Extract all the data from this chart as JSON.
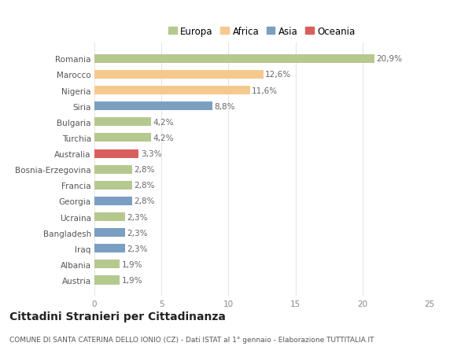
{
  "categories": [
    "Romania",
    "Marocco",
    "Nigeria",
    "Siria",
    "Bulgaria",
    "Turchia",
    "Australia",
    "Bosnia-Erzegovina",
    "Francia",
    "Georgia",
    "Ucraina",
    "Bangladesh",
    "Iraq",
    "Albania",
    "Austria"
  ],
  "values": [
    20.9,
    12.6,
    11.6,
    8.8,
    4.2,
    4.2,
    3.3,
    2.8,
    2.8,
    2.8,
    2.3,
    2.3,
    2.3,
    1.9,
    1.9
  ],
  "labels": [
    "20,9%",
    "12,6%",
    "11,6%",
    "8,8%",
    "4,2%",
    "4,2%",
    "3,3%",
    "2,8%",
    "2,8%",
    "2,8%",
    "2,3%",
    "2,3%",
    "2,3%",
    "1,9%",
    "1,9%"
  ],
  "continents": [
    "Europa",
    "Africa",
    "Africa",
    "Asia",
    "Europa",
    "Europa",
    "Oceania",
    "Europa",
    "Europa",
    "Asia",
    "Europa",
    "Asia",
    "Asia",
    "Europa",
    "Europa"
  ],
  "colors": {
    "Europa": "#b5c98e",
    "Africa": "#f5c98e",
    "Asia": "#7a9fc2",
    "Oceania": "#d95f5f"
  },
  "legend_order": [
    "Europa",
    "Africa",
    "Asia",
    "Oceania"
  ],
  "xlim": [
    0,
    25
  ],
  "xticks": [
    0,
    5,
    10,
    15,
    20,
    25
  ],
  "title": "Cittadini Stranieri per Cittadinanza",
  "subtitle": "COMUNE DI SANTA CATERINA DELLO IONIO (CZ) - Dati ISTAT al 1° gennaio - Elaborazione TUTTITALIA.IT",
  "bg_color": "#ffffff",
  "grid_color": "#e5e5e5",
  "bar_height": 0.55,
  "label_fontsize": 7.5,
  "ytick_fontsize": 7.5,
  "xtick_fontsize": 7.5,
  "title_fontsize": 10,
  "subtitle_fontsize": 6.5,
  "legend_fontsize": 8.5
}
